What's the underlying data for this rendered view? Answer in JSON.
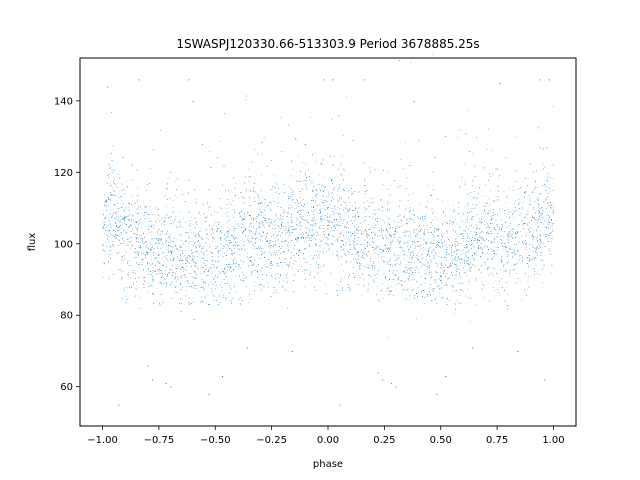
{
  "chart_data": {
    "type": "scatter",
    "title": "1SWASPJ120330.66-513303.9 Period 3678885.25s",
    "xlabel": "phase",
    "ylabel": "flux",
    "xlim": [
      -1.1,
      1.1
    ],
    "ylim": [
      49,
      152
    ],
    "x_ticks": [
      -1.0,
      -0.75,
      -0.5,
      -0.25,
      0.0,
      0.25,
      0.5,
      0.75,
      1.0
    ],
    "x_tick_labels": [
      "−1.00",
      "−0.75",
      "−0.50",
      "−0.25",
      "0.00",
      "0.25",
      "0.50",
      "0.75",
      "1.00"
    ],
    "y_ticks": [
      60,
      80,
      100,
      120,
      140
    ],
    "y_tick_labels": [
      "60",
      "80",
      "100",
      "120",
      "140"
    ],
    "grid": false,
    "series": [
      {
        "color": "#1f77b4",
        "marker_size": 0.6,
        "phase_range": [
          -1.0,
          1.0
        ],
        "baseline_flux": 100,
        "scatter_range_flux": [
          83,
          125
        ],
        "profile_points": [
          {
            "x": -1.0,
            "y": 104
          },
          {
            "x": -0.95,
            "y": 108
          },
          {
            "x": -0.9,
            "y": 103
          },
          {
            "x": -0.85,
            "y": 101
          },
          {
            "x": -0.8,
            "y": 99
          },
          {
            "x": -0.75,
            "y": 98
          },
          {
            "x": -0.7,
            "y": 99
          },
          {
            "x": -0.65,
            "y": 97
          },
          {
            "x": -0.6,
            "y": 96
          },
          {
            "x": -0.55,
            "y": 96
          },
          {
            "x": -0.5,
            "y": 97
          },
          {
            "x": -0.45,
            "y": 97
          },
          {
            "x": -0.4,
            "y": 99
          },
          {
            "x": -0.35,
            "y": 102
          },
          {
            "x": -0.3,
            "y": 102
          },
          {
            "x": -0.25,
            "y": 100
          },
          {
            "x": -0.2,
            "y": 101
          },
          {
            "x": -0.15,
            "y": 103
          },
          {
            "x": -0.1,
            "y": 104
          },
          {
            "x": -0.05,
            "y": 105
          },
          {
            "x": 0.0,
            "y": 108
          },
          {
            "x": 0.05,
            "y": 104
          },
          {
            "x": 0.1,
            "y": 102
          },
          {
            "x": 0.15,
            "y": 100
          },
          {
            "x": 0.2,
            "y": 100
          },
          {
            "x": 0.25,
            "y": 99
          },
          {
            "x": 0.3,
            "y": 98
          },
          {
            "x": 0.35,
            "y": 98
          },
          {
            "x": 0.4,
            "y": 97
          },
          {
            "x": 0.45,
            "y": 97
          },
          {
            "x": 0.5,
            "y": 96
          },
          {
            "x": 0.55,
            "y": 96
          },
          {
            "x": 0.6,
            "y": 98
          },
          {
            "x": 0.65,
            "y": 101
          },
          {
            "x": 0.7,
            "y": 101
          },
          {
            "x": 0.75,
            "y": 100
          },
          {
            "x": 0.8,
            "y": 101
          },
          {
            "x": 0.85,
            "y": 103
          },
          {
            "x": 0.9,
            "y": 103
          },
          {
            "x": 0.95,
            "y": 106
          },
          {
            "x": 1.0,
            "y": 108
          }
        ],
        "outliers": [
          {
            "x": -0.93,
            "y": 55
          },
          {
            "x": -0.8,
            "y": 66
          },
          {
            "x": -0.78,
            "y": 62
          },
          {
            "x": -0.72,
            "y": 61
          },
          {
            "x": -0.7,
            "y": 60
          },
          {
            "x": -0.47,
            "y": 63
          },
          {
            "x": -0.36,
            "y": 71
          },
          {
            "x": -0.16,
            "y": 70
          },
          {
            "x": 0.05,
            "y": 55
          },
          {
            "x": 0.22,
            "y": 64
          },
          {
            "x": 0.24,
            "y": 62
          },
          {
            "x": 0.28,
            "y": 61
          },
          {
            "x": 0.3,
            "y": 60
          },
          {
            "x": 0.52,
            "y": 63
          },
          {
            "x": 0.64,
            "y": 71
          },
          {
            "x": 0.84,
            "y": 70
          },
          {
            "x": 0.96,
            "y": 62
          },
          {
            "x": -0.53,
            "y": 58
          },
          {
            "x": 0.48,
            "y": 58
          },
          {
            "x": -0.62,
            "y": 146
          },
          {
            "x": -0.84,
            "y": 146
          },
          {
            "x": -0.6,
            "y": 140
          },
          {
            "x": 0.38,
            "y": 140
          },
          {
            "x": 0.16,
            "y": 146
          },
          {
            "x": 0.94,
            "y": 146
          },
          {
            "x": 0.98,
            "y": 146
          },
          {
            "x": -0.02,
            "y": 146
          },
          {
            "x": 0.02,
            "y": 146
          },
          {
            "x": -0.98,
            "y": 144
          },
          {
            "x": 0.76,
            "y": 145
          }
        ]
      }
    ]
  }
}
